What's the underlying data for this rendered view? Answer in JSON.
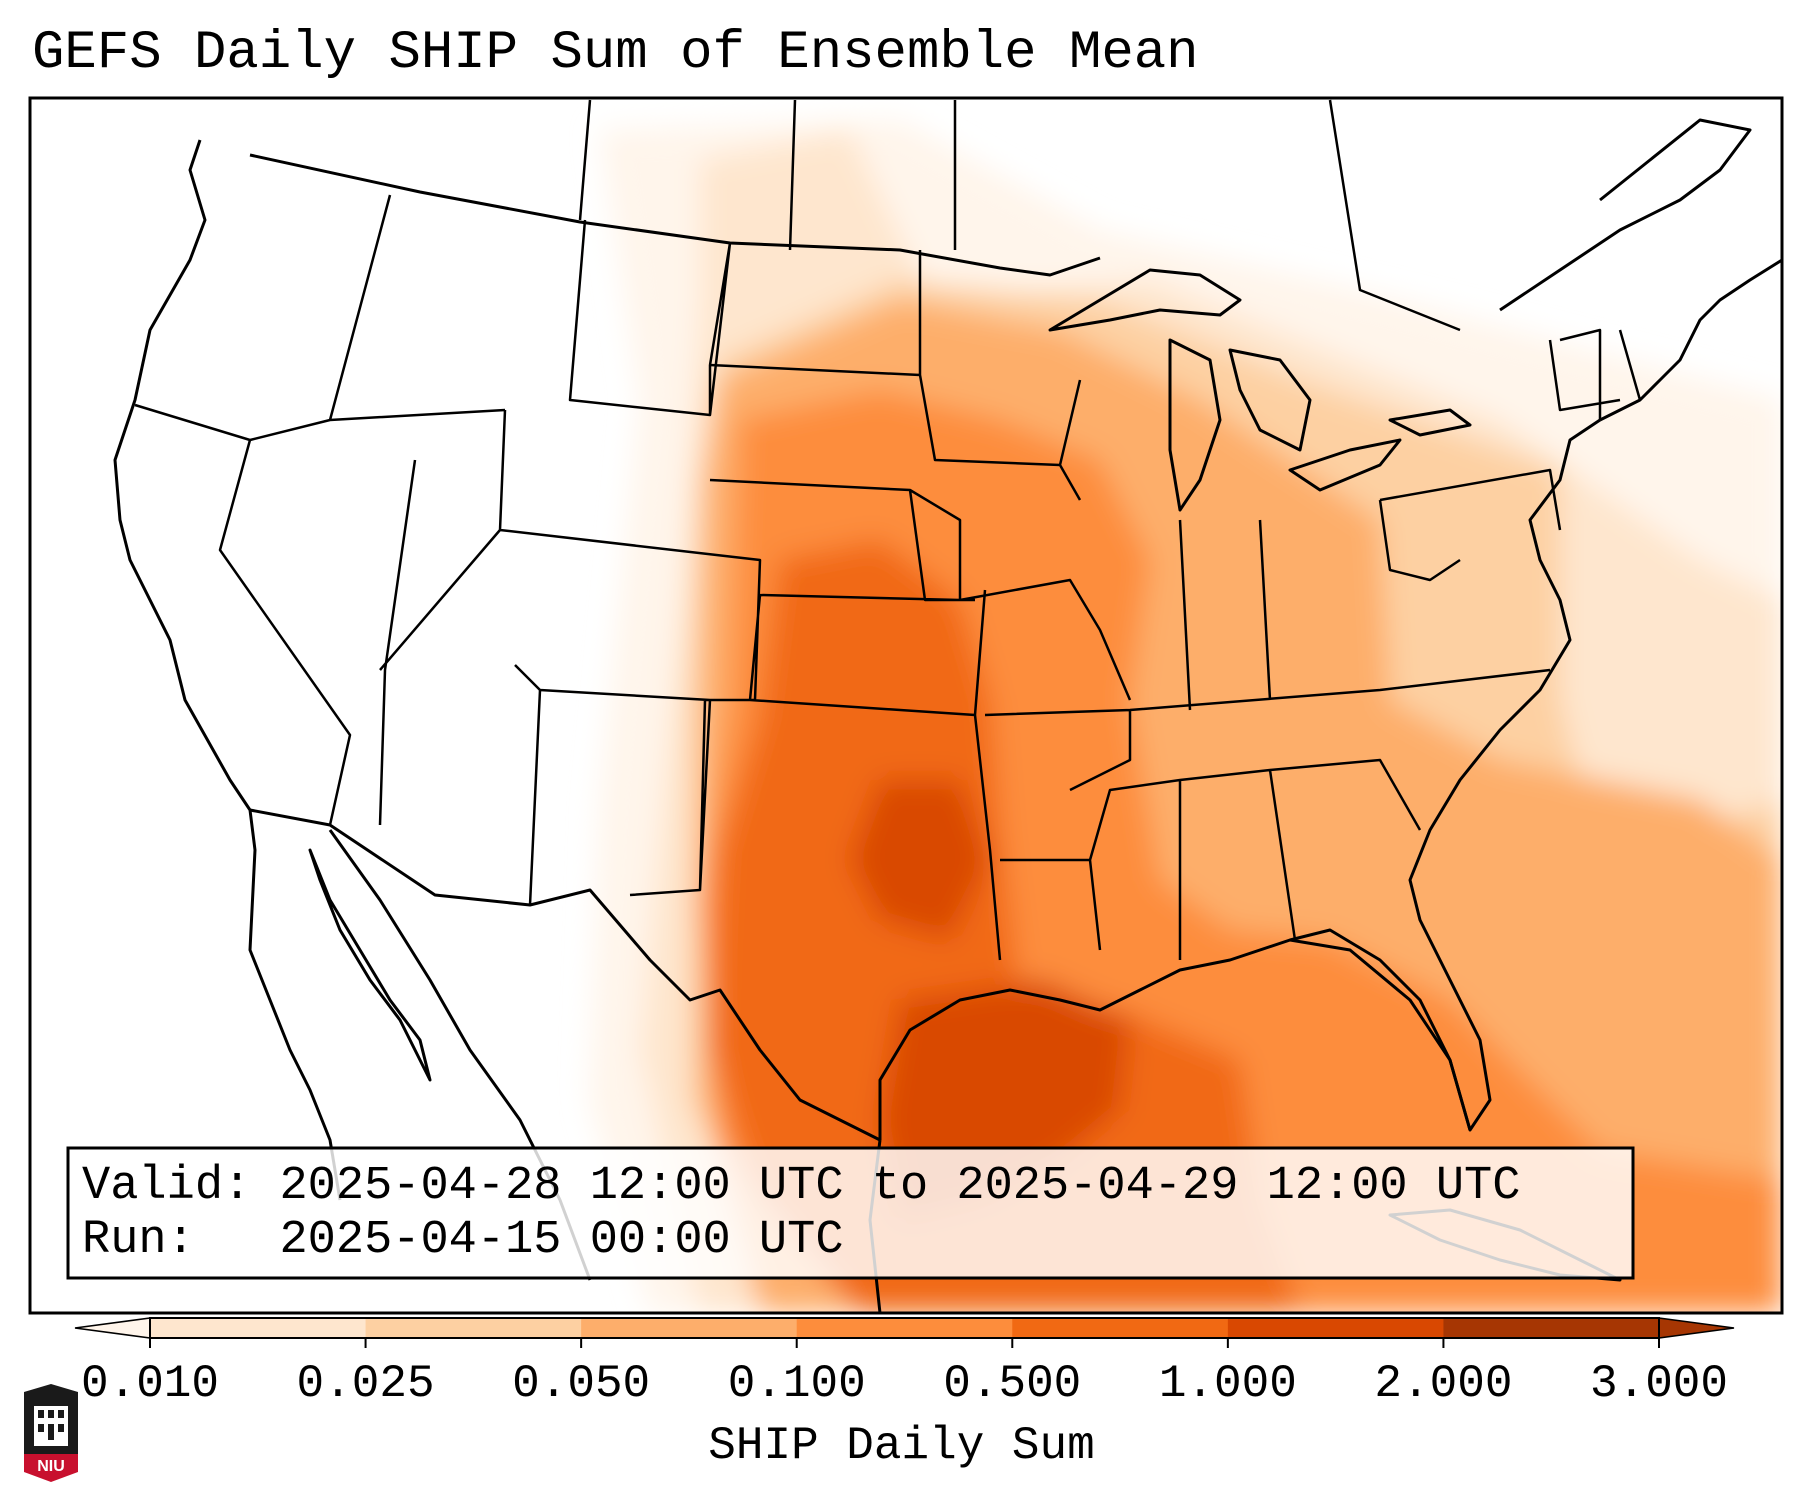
{
  "title": "GEFS Daily SHIP Sum of Ensemble Mean",
  "info_box": {
    "valid_label": "Valid:",
    "valid_value": "2025-04-28 12:00 UTC to 2025-04-29 12:00 UTC",
    "run_label": "Run:",
    "run_value": "2025-04-15 00:00 UTC"
  },
  "colorbar": {
    "label": "SHIP Daily Sum",
    "ticks": [
      "0.010",
      "0.025",
      "0.050",
      "0.100",
      "0.500",
      "1.000",
      "2.000",
      "3.000"
    ],
    "colors": [
      "#fff5eb",
      "#fee6ce",
      "#fdd0a2",
      "#fdae6b",
      "#fd8d3c",
      "#f16913",
      "#d94801",
      "#a63603"
    ],
    "extend": "both"
  },
  "logo": {
    "text": "NIU"
  }
}
